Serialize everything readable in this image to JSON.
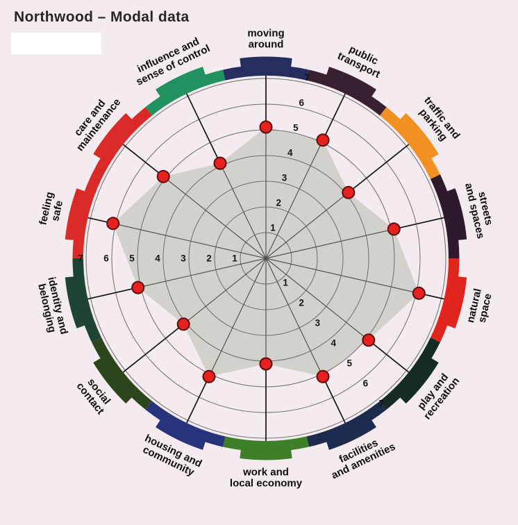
{
  "title": "Northwood – Modal data",
  "background_color": "#f3ebef",
  "redacted_box": {
    "present": true,
    "color": "#ffffff"
  },
  "chart_data": {
    "type": "radar",
    "title": "Northwood – Modal data",
    "scale": {
      "min": 1,
      "max": 7,
      "ticks": [
        1,
        2,
        3,
        4,
        5,
        6,
        7
      ]
    },
    "grid": {
      "rings": 7,
      "spokes": 14,
      "tick_rays": 3
    },
    "point_color": "#e6211f",
    "point_outline_color": "#5a0e0c",
    "fill_color": "#d2d1cb",
    "grid_line_color": "#6e6c68",
    "spoke_color": "#55534f",
    "connector_color": "#161616",
    "categories": [
      {
        "label": "moving around",
        "lines": [
          "moving",
          "around"
        ],
        "value": 5,
        "arc_color": "#262d5f"
      },
      {
        "label": "public transport",
        "lines": [
          "public",
          "transport"
        ],
        "value": 5,
        "arc_color": "#37202f"
      },
      {
        "label": "traffic and parking",
        "lines": [
          "traffic and",
          "parking"
        ],
        "value": 4,
        "arc_color": "#f09122"
      },
      {
        "label": "streets and spaces",
        "lines": [
          "streets",
          "and spaces"
        ],
        "value": 5,
        "arc_color": "#2d1a2d"
      },
      {
        "label": "natural space",
        "lines": [
          "natural",
          "space"
        ],
        "value": 6,
        "arc_color": "#e0251f"
      },
      {
        "label": "play and recreation",
        "lines": [
          "play and",
          "recreation"
        ],
        "value": 5,
        "arc_color": "#152b26"
      },
      {
        "label": "facilities and amenities",
        "lines": [
          "facilities",
          "and amenities"
        ],
        "value": 5,
        "arc_color": "#1d2c4e"
      },
      {
        "label": "work and local economy",
        "lines": [
          "work and",
          "local economy"
        ],
        "value": 4,
        "arc_color": "#3d8027"
      },
      {
        "label": "housing and community",
        "lines": [
          "housing and",
          "community"
        ],
        "value": 5,
        "arc_color": "#27337b"
      },
      {
        "label": "social contact",
        "lines": [
          "social",
          "contact"
        ],
        "value": 4,
        "arc_color": "#2c451d"
      },
      {
        "label": "identity and belonging",
        "lines": [
          "identity and",
          "belonging"
        ],
        "value": 5,
        "arc_color": "#1e4434"
      },
      {
        "label": "feeling safe",
        "lines": [
          "feeling",
          "safe"
        ],
        "value": 6,
        "arc_color": "#da2a28"
      },
      {
        "label": "care and maintenance",
        "lines": [
          "care and",
          "maintenance"
        ],
        "value": 5,
        "arc_color": "#da2a28"
      },
      {
        "label": "influence and sense of control",
        "lines": [
          "influence and",
          "sense of control"
        ],
        "value": 4,
        "arc_color": "#21925f"
      }
    ]
  }
}
